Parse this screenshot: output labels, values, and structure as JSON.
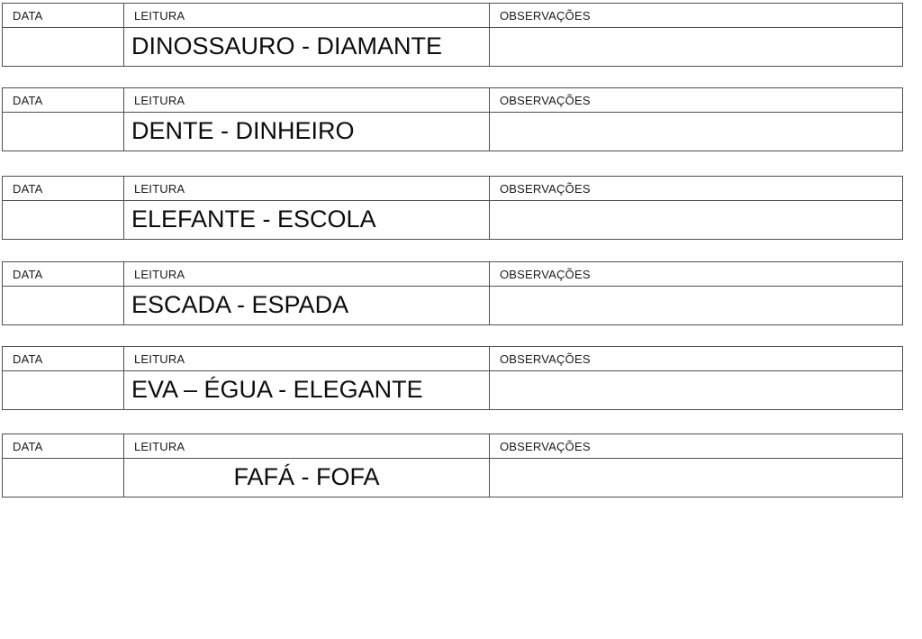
{
  "document": {
    "type": "reading-practice-worksheet",
    "colors": {
      "background": "#ffffff",
      "border": "#4f4f4f",
      "text": "#111111"
    },
    "tables": [
      {
        "headers": {
          "data": "DATA",
          "leitura": "LEITURA",
          "observacoes": "OBSERVAÇÕES"
        },
        "data_value": "",
        "leitura_value": "DINOSSAURO - DIAMANTE",
        "observacoes_value": ""
      },
      {
        "headers": {
          "data": "DATA",
          "leitura": "LEITURA",
          "observacoes": "OBSERVAÇÕES"
        },
        "data_value": "",
        "leitura_value": "DENTE - DINHEIRO",
        "observacoes_value": ""
      },
      {
        "headers": {
          "data": "DATA",
          "leitura": "LEITURA",
          "observacoes": "OBSERVAÇÕES"
        },
        "data_value": "",
        "leitura_value": "ELEFANTE - ESCOLA",
        "observacoes_value": ""
      },
      {
        "headers": {
          "data": "DATA",
          "leitura": "LEITURA",
          "observacoes": "OBSERVAÇÕES"
        },
        "data_value": "",
        "leitura_value": "ESCADA - ESPADA",
        "observacoes_value": ""
      },
      {
        "headers": {
          "data": "DATA",
          "leitura": "LEITURA",
          "observacoes": "OBSERVAÇÕES"
        },
        "data_value": "",
        "leitura_value": "EVA – ÉGUA - ELEGANTE",
        "observacoes_value": ""
      },
      {
        "headers": {
          "data": "DATA",
          "leitura": "LEITURA",
          "observacoes": "OBSERVAÇÕES"
        },
        "data_value": "",
        "leitura_value": "FAFÁ - FOFA",
        "observacoes_value": ""
      }
    ]
  }
}
